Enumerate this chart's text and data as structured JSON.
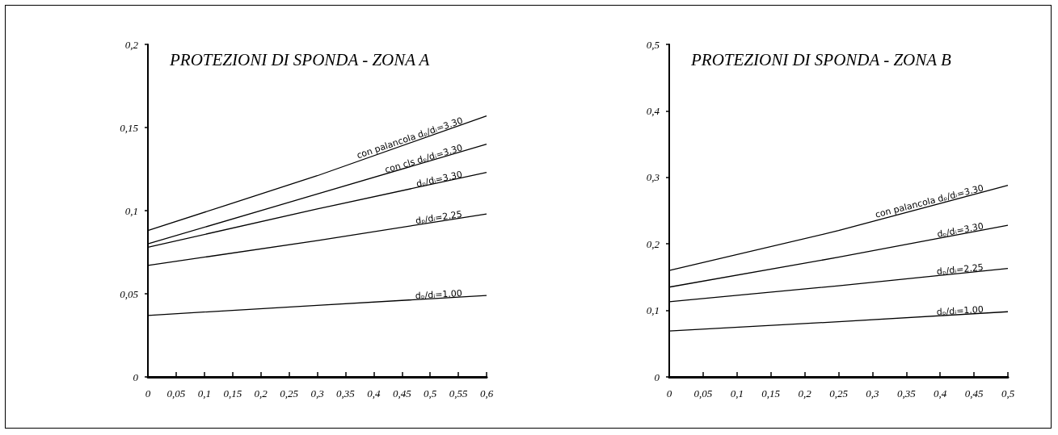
{
  "chart_data": [
    {
      "type": "line",
      "title": "PROTEZIONI DI SPONDA - ZONA A",
      "x": [
        0,
        0.3,
        0.6
      ],
      "xlim": [
        0,
        0.6
      ],
      "xticks": [
        {
          "value": 0,
          "label": "0"
        },
        {
          "value": 0.05,
          "label": "0,05"
        },
        {
          "value": 0.1,
          "label": "0,1"
        },
        {
          "value": 0.15,
          "label": "0,15"
        },
        {
          "value": 0.2,
          "label": "0,2"
        },
        {
          "value": 0.25,
          "label": "0,25"
        },
        {
          "value": 0.3,
          "label": "0,3"
        },
        {
          "value": 0.35,
          "label": "0,35"
        },
        {
          "value": 0.4,
          "label": "0,4"
        },
        {
          "value": 0.45,
          "label": "0,45"
        },
        {
          "value": 0.5,
          "label": "0,5"
        },
        {
          "value": 0.55,
          "label": "0,55"
        },
        {
          "value": 0.6,
          "label": "0,6"
        }
      ],
      "ylim": [
        0,
        0.2
      ],
      "yticks": [
        {
          "value": 0,
          "label": "0"
        },
        {
          "value": 0.05,
          "label": "0,05"
        },
        {
          "value": 0.1,
          "label": "0,1"
        },
        {
          "value": 0.15,
          "label": "0,15"
        },
        {
          "value": 0.2,
          "label": "0,2"
        }
      ],
      "grid": false,
      "legend": false,
      "marker": "none",
      "line_style": "solid",
      "series": [
        {
          "name": "con palancola dₚ/dᵢ=3.30",
          "color": "#000000",
          "values": [
            0.088,
            0.121,
            0.157
          ]
        },
        {
          "name": "con cls dₚ/dᵢ=3.30",
          "color": "#000000",
          "values": [
            0.08,
            0.11,
            0.14
          ]
        },
        {
          "name": "dₚ/dᵢ=3.30",
          "color": "#000000",
          "values": [
            0.078,
            0.101,
            0.123
          ]
        },
        {
          "name": "dₚ/dᵢ=2.25",
          "color": "#000000",
          "values": [
            0.067,
            0.082,
            0.098
          ]
        },
        {
          "name": "dₚ/dᵢ=1.00",
          "color": "#000000",
          "values": [
            0.037,
            0.043,
            0.049
          ]
        }
      ]
    },
    {
      "type": "line",
      "title": "PROTEZIONI DI SPONDA - ZONA B",
      "x": [
        0,
        0.25,
        0.5
      ],
      "xlim": [
        0,
        0.5
      ],
      "xticks": [
        {
          "value": 0,
          "label": "0"
        },
        {
          "value": 0.05,
          "label": "0,05"
        },
        {
          "value": 0.1,
          "label": "0,1"
        },
        {
          "value": 0.15,
          "label": "0,15"
        },
        {
          "value": 0.2,
          "label": "0,2"
        },
        {
          "value": 0.25,
          "label": "0,25"
        },
        {
          "value": 0.3,
          "label": "0,3"
        },
        {
          "value": 0.35,
          "label": "0,35"
        },
        {
          "value": 0.4,
          "label": "0,4"
        },
        {
          "value": 0.45,
          "label": "0,45"
        },
        {
          "value": 0.5,
          "label": "0,5"
        }
      ],
      "ylim": [
        0,
        0.5
      ],
      "yticks": [
        {
          "value": 0,
          "label": "0"
        },
        {
          "value": 0.1,
          "label": "0,1"
        },
        {
          "value": 0.2,
          "label": "0,2"
        },
        {
          "value": 0.3,
          "label": "0,3"
        },
        {
          "value": 0.4,
          "label": "0,4"
        },
        {
          "value": 0.5,
          "label": "0,5"
        }
      ],
      "grid": false,
      "legend": false,
      "marker": "none",
      "line_style": "solid",
      "series": [
        {
          "name": "con palancola dₚ/dᵢ=3.30",
          "color": "#000000",
          "values": [
            0.16,
            0.22,
            0.288
          ]
        },
        {
          "name": "dₚ/dᵢ=3.30",
          "color": "#000000",
          "values": [
            0.135,
            0.18,
            0.228
          ]
        },
        {
          "name": "dₚ/dᵢ=2.25",
          "color": "#000000",
          "values": [
            0.113,
            0.137,
            0.163
          ]
        },
        {
          "name": "dₚ/dᵢ=1.00",
          "color": "#000000",
          "values": [
            0.069,
            0.083,
            0.098
          ]
        }
      ]
    }
  ]
}
